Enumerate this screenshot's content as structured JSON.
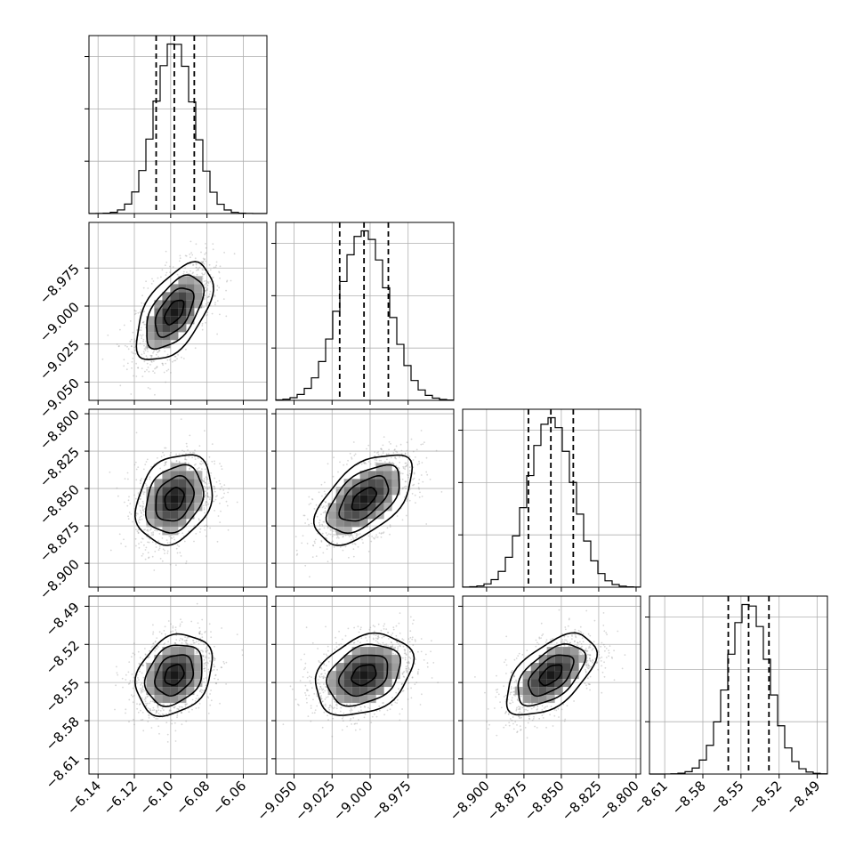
{
  "chart_data": {
    "type": "corner",
    "parameters": [
      {
        "id": "p0",
        "median": -6.098,
        "q16": -6.108,
        "q84": -6.087,
        "sigma": 0.0105,
        "hist_range": [
          -6.145,
          -6.047
        ],
        "ticks": [
          -6.14,
          -6.12,
          -6.1,
          -6.08,
          -6.06
        ],
        "tick_labels": [
          "−6.14",
          "−6.12",
          "−6.10",
          "−6.08",
          "−6.06"
        ]
      },
      {
        "id": "p1",
        "median": -9.004,
        "q16": -9.02,
        "q84": -8.988,
        "sigma": 0.016,
        "hist_range": [
          -9.062,
          -8.945
        ],
        "ticks": [
          -9.05,
          -9.025,
          -9.0,
          -8.975
        ],
        "tick_labels": [
          "−9.050",
          "−9.025",
          "−9.000",
          "−8.975"
        ]
      },
      {
        "id": "p2",
        "median": -8.857,
        "q16": -8.872,
        "q84": -8.842,
        "sigma": 0.015,
        "hist_range": [
          -8.916,
          -8.797
        ],
        "ticks": [
          -8.9,
          -8.875,
          -8.85,
          -8.825,
          -8.8
        ],
        "tick_labels": [
          "−8.900",
          "−8.875",
          "−8.850",
          "−8.825",
          "−8.800"
        ]
      },
      {
        "id": "p3",
        "median": -8.544,
        "q16": -8.56,
        "q84": -8.528,
        "sigma": 0.016,
        "hist_range": [
          -8.622,
          -8.482
        ],
        "ticks": [
          -8.61,
          -8.58,
          -8.55,
          -8.52,
          -8.49
        ],
        "tick_labels": [
          "−8.61",
          "−8.58",
          "−8.55",
          "−8.52",
          "−8.49"
        ]
      }
    ],
    "correlations": {
      "1,0": 0.55,
      "2,0": 0.25,
      "2,1": 0.55,
      "3,0": 0.25,
      "3,1": 0.3,
      "3,2": 0.55
    },
    "quantiles": [
      0.16,
      0.5,
      0.84
    ],
    "contour_levels": [
      "0.5σ",
      "1σ",
      "1.5σ",
      "2σ"
    ],
    "grid": true,
    "colors": {
      "line": "#000000",
      "grid": "#b0b0b0",
      "points": "#8c8c8c"
    }
  }
}
